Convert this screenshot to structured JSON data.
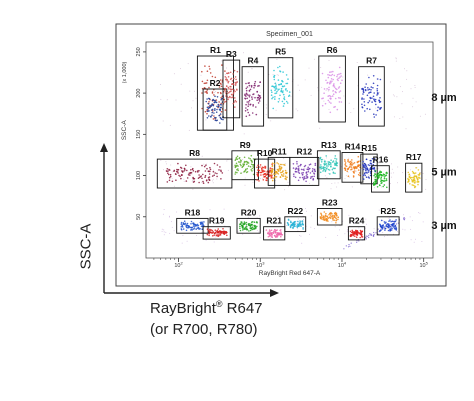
{
  "chart_data": {
    "type": "scatter",
    "title": "Specimen_001",
    "xlabel": "RayBright Red 647-A",
    "ylabel": "SSC-A",
    "y_scale_label": "(x 1,000)",
    "x_scale": "log",
    "xlim": [
      40,
      130000
    ],
    "ylim": [
      0,
      262
    ],
    "x_ticks": [
      {
        "value": 100,
        "base": "10",
        "exp": "2"
      },
      {
        "value": 1000,
        "base": "10",
        "exp": "3"
      },
      {
        "value": 10000,
        "base": "10",
        "exp": "4"
      },
      {
        "value": 100000,
        "base": "10",
        "exp": "5"
      }
    ],
    "y_ticks": [
      50,
      100,
      150,
      200,
      250
    ],
    "grid": false,
    "legend": "none",
    "size_groups": [
      {
        "label": "8 µm",
        "y": 195
      },
      {
        "label": "5 µm",
        "y": 105
      },
      {
        "label": "3 µm",
        "y": 40
      }
    ],
    "gates": [
      {
        "name": "R1",
        "x": [
          170,
          470
        ],
        "y": [
          155,
          245
        ],
        "color": "#c0392b"
      },
      {
        "name": "R2",
        "x": [
          200,
          390
        ],
        "y": [
          155,
          205
        ],
        "color": "#1f3a93"
      },
      {
        "name": "R3",
        "x": [
          350,
          560
        ],
        "y": [
          170,
          240
        ],
        "color": "#d35454"
      },
      {
        "name": "R4",
        "x": [
          600,
          1100
        ],
        "y": [
          160,
          232
        ],
        "color": "#7d1f6a"
      },
      {
        "name": "R5",
        "x": [
          1250,
          2500
        ],
        "y": [
          170,
          243
        ],
        "color": "#27c5d4"
      },
      {
        "name": "R6",
        "x": [
          5200,
          11000
        ],
        "y": [
          165,
          245
        ],
        "color": "#d98ee6"
      },
      {
        "name": "R7",
        "x": [
          16000,
          33000
        ],
        "y": [
          160,
          232
        ],
        "color": "#2233bb"
      },
      {
        "name": "R8",
        "x": [
          55,
          450
        ],
        "y": [
          85,
          120
        ],
        "color": "#8b1a3c"
      },
      {
        "name": "R9",
        "x": [
          450,
          950
        ],
        "y": [
          95,
          130
        ],
        "color": "#5fae2e"
      },
      {
        "name": "R10",
        "x": [
          850,
          1500
        ],
        "y": [
          85,
          120
        ],
        "color": "#e8291c"
      },
      {
        "name": "R11",
        "x": [
          1250,
          2300
        ],
        "y": [
          88,
          122
        ],
        "color": "#e6a21a"
      },
      {
        "name": "R12",
        "x": [
          2300,
          5200
        ],
        "y": [
          88,
          122
        ],
        "color": "#7a3fb0"
      },
      {
        "name": "R13",
        "x": [
          5000,
          9500
        ],
        "y": [
          96,
          130
        ],
        "color": "#2ec4b6"
      },
      {
        "name": "R14",
        "x": [
          10000,
          18000
        ],
        "y": [
          92,
          128
        ],
        "color": "#f07d1c"
      },
      {
        "name": "R15",
        "x": [
          17000,
          27000
        ],
        "y": [
          90,
          126
        ],
        "color": "#2233bb"
      },
      {
        "name": "R16",
        "x": [
          23000,
          38000
        ],
        "y": [
          80,
          112
        ],
        "color": "#17b51c"
      },
      {
        "name": "R17",
        "x": [
          60000,
          95000
        ],
        "y": [
          80,
          115
        ],
        "color": "#e8c31f"
      },
      {
        "name": "R18",
        "x": [
          95,
          230
        ],
        "y": [
          30,
          48
        ],
        "color": "#2255cc"
      },
      {
        "name": "R19",
        "x": [
          200,
          430
        ],
        "y": [
          23,
          38
        ],
        "color": "#d81e1e"
      },
      {
        "name": "R20",
        "x": [
          520,
          1000
        ],
        "y": [
          30,
          48
        ],
        "color": "#1ea21e"
      },
      {
        "name": "R21",
        "x": [
          1100,
          2000
        ],
        "y": [
          22,
          38
        ],
        "color": "#ee66aa"
      },
      {
        "name": "R22",
        "x": [
          2000,
          3600
        ],
        "y": [
          32,
          50
        ],
        "color": "#2ab3d6"
      },
      {
        "name": "R23",
        "x": [
          5000,
          10000
        ],
        "y": [
          40,
          60
        ],
        "color": "#f28c1e"
      },
      {
        "name": "R24",
        "x": [
          12000,
          19000
        ],
        "y": [
          22,
          38
        ],
        "color": "#e01e1e"
      },
      {
        "name": "R25",
        "x": [
          27000,
          50000
        ],
        "y": [
          28,
          50
        ],
        "color": "#1e44cc"
      }
    ]
  },
  "outer": {
    "ylabel": "SSC-A",
    "xlabel_main": "RayBright",
    "xlabel_reg": "®",
    "xlabel_suffix": " R647",
    "xlabel_line2": "(or R700, R780)"
  }
}
